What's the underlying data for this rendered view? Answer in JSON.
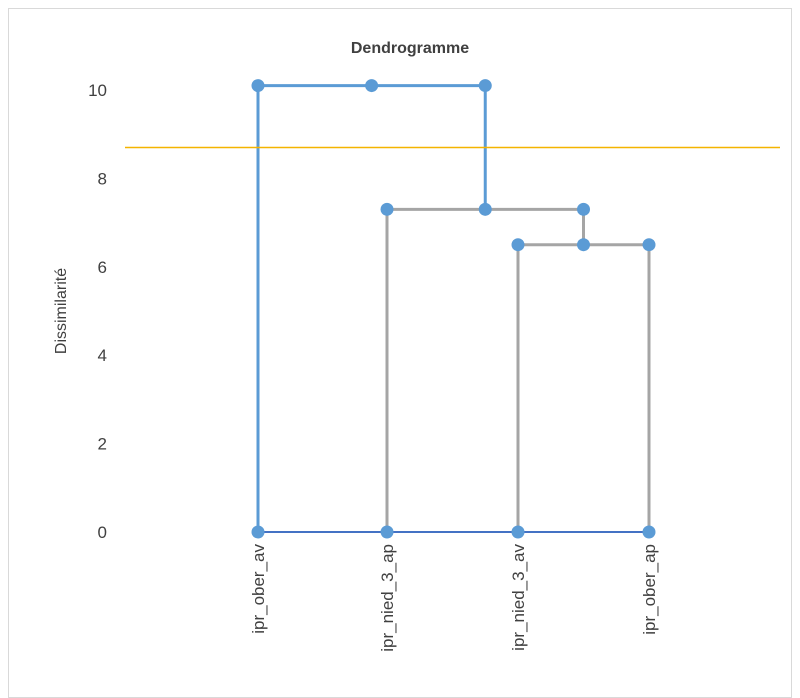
{
  "chart_data": {
    "type": "dendrogram",
    "title": "Dendrogramme",
    "ylabel": "Dissimilarité",
    "xlabel": "",
    "ylim": [
      0,
      10
    ],
    "yticks": [
      "0",
      "2",
      "4",
      "6",
      "8",
      "10"
    ],
    "categories": [
      "ipr_ober_av",
      "ipr_nied_3_ap",
      "ipr_nied_3_av",
      "ipr_ober_ap"
    ],
    "merges": [
      {
        "left": "ipr_nied_3_av",
        "right": "ipr_ober_ap",
        "height": 6.5,
        "color": "#a5a5a5"
      },
      {
        "left": "ipr_nied_3_ap",
        "right": "merge-1",
        "height": 7.3,
        "color": "#a5a5a5"
      },
      {
        "left": "ipr_ober_av",
        "right": "merge-2",
        "height": 10.1,
        "color": "#5b9bd5"
      }
    ],
    "cutoff": {
      "value": 8.7,
      "color": "#f4b400"
    },
    "colors": {
      "cluster_a": "#5b9bd5",
      "cluster_b": "#a5a5a5",
      "baseline": "#4472c4",
      "marker": "#5b9bd5"
    }
  }
}
